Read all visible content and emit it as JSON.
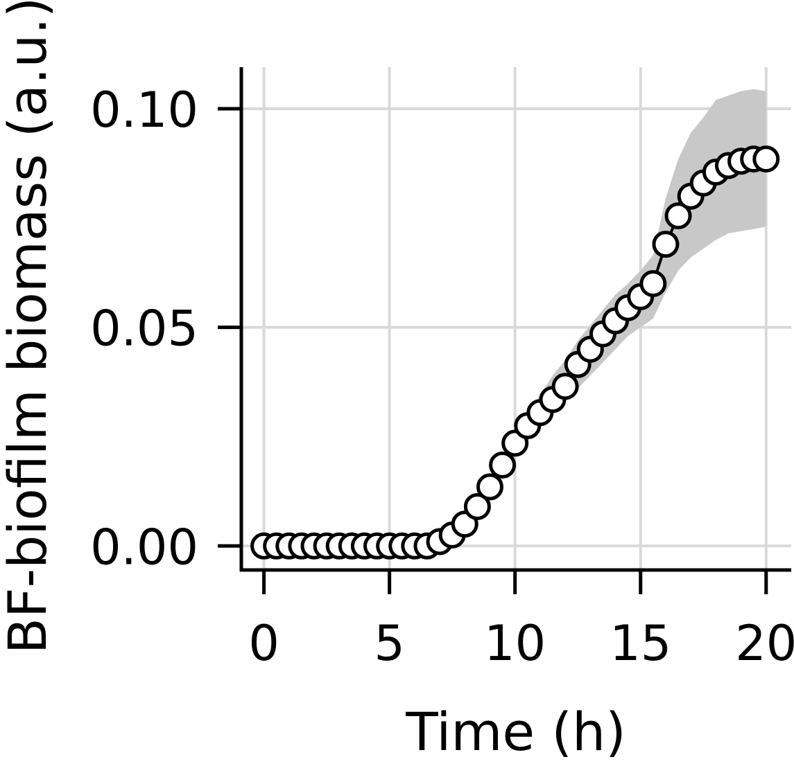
{
  "chart_data": {
    "type": "scatter",
    "title": "",
    "xlabel": "Time (h)",
    "ylabel": "BF-biofilm biomass (a.u.)",
    "xlim": [
      -0.9,
      21.0
    ],
    "ylim": [
      -0.0055,
      0.1095
    ],
    "xticks": [
      0,
      5,
      10,
      15,
      20
    ],
    "xtick_labels": [
      "0",
      "5",
      "10",
      "15",
      "20"
    ],
    "yticks": [
      0.0,
      0.05,
      0.1
    ],
    "ytick_labels": [
      "0.00",
      "0.05",
      "0.10"
    ],
    "grid": true,
    "legend": "none",
    "colors": {
      "band": "#c8c8c8",
      "marker_fill": "#ffffff",
      "marker_edge": "#000000",
      "grid": "#d9d9d9",
      "axis": "#000000"
    },
    "series": [
      {
        "x": [
          0.0,
          0.5,
          1.0,
          1.5,
          2.0,
          2.5,
          3.0,
          3.5,
          4.0,
          4.5,
          5.0,
          5.5,
          6.0,
          6.5,
          7.0,
          7.5,
          8.0,
          8.5,
          9.0,
          9.5,
          10.0,
          10.5,
          11.0,
          11.5,
          12.0,
          12.5,
          13.0,
          13.5,
          14.0,
          14.5,
          15.0,
          15.5,
          16.0,
          16.5,
          17.0,
          17.5,
          18.0,
          18.5,
          19.0,
          19.5,
          20.0
        ],
        "y": [
          0.0,
          0.0,
          0.0,
          0.0,
          0.0,
          0.0,
          0.0,
          0.0,
          0.0,
          0.0,
          0.0,
          0.0,
          0.0,
          0.0,
          0.001,
          0.0025,
          0.005,
          0.009,
          0.0135,
          0.0185,
          0.0235,
          0.0275,
          0.0305,
          0.0335,
          0.0365,
          0.0415,
          0.045,
          0.0485,
          0.0515,
          0.0545,
          0.057,
          0.06,
          0.069,
          0.0755,
          0.08,
          0.083,
          0.0855,
          0.087,
          0.088,
          0.0885,
          0.0885
        ],
        "lower": [
          0.0,
          0.0,
          0.0,
          0.0,
          0.0,
          0.0,
          0.0,
          0.0,
          0.0,
          0.0,
          0.0,
          0.0,
          0.0,
          0.0,
          0.0005,
          0.002,
          0.004,
          0.0075,
          0.012,
          0.0165,
          0.0205,
          0.024,
          0.027,
          0.03,
          0.033,
          0.036,
          0.039,
          0.042,
          0.045,
          0.048,
          0.05,
          0.052,
          0.058,
          0.063,
          0.066,
          0.068,
          0.07,
          0.0715,
          0.072,
          0.0725,
          0.073
        ],
        "upper": [
          0.0,
          0.0,
          0.0,
          0.0,
          0.0,
          0.0,
          0.0,
          0.0,
          0.0,
          0.0,
          0.0,
          0.0,
          0.0,
          0.0,
          0.0015,
          0.003,
          0.006,
          0.0105,
          0.015,
          0.0205,
          0.0265,
          0.0305,
          0.0345,
          0.039,
          0.0425,
          0.047,
          0.0505,
          0.054,
          0.0575,
          0.06,
          0.063,
          0.0665,
          0.0795,
          0.0885,
          0.0945,
          0.098,
          0.102,
          0.103,
          0.104,
          0.1045,
          0.104
        ]
      }
    ]
  }
}
